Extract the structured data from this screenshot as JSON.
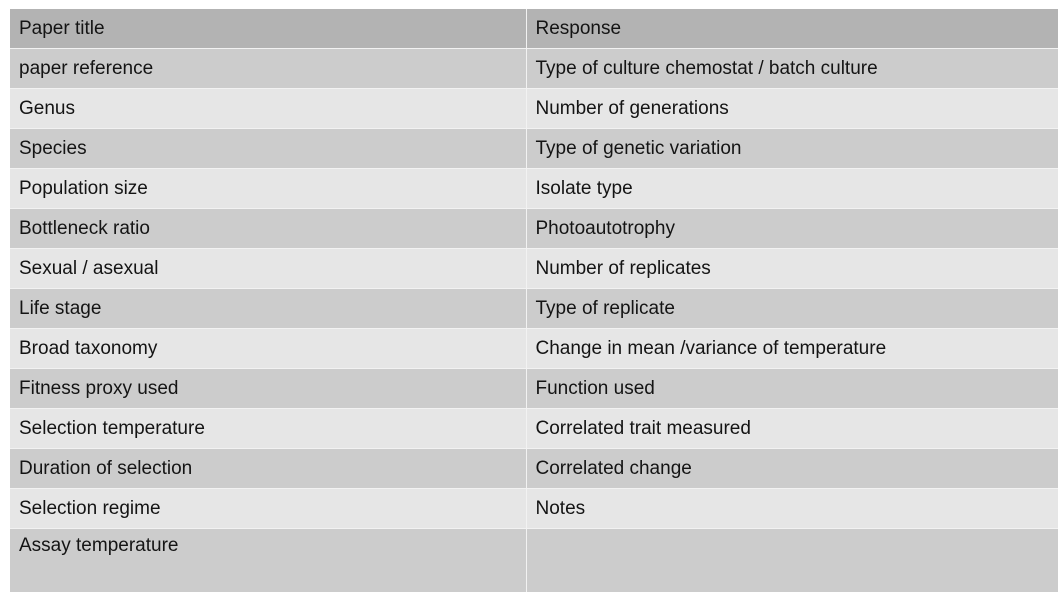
{
  "header": {
    "col1": "Paper title",
    "col2": "Response"
  },
  "rows": [
    {
      "left": "paper reference",
      "right": "Type of culture chemostat / batch culture"
    },
    {
      "left": "Genus",
      "right": "Number of generations"
    },
    {
      "left": "Species",
      "right": "Type of genetic variation"
    },
    {
      "left": "Population size",
      "right": "Isolate type"
    },
    {
      "left": "Bottleneck ratio",
      "right": "Photoautotrophy"
    },
    {
      "left": "Sexual / asexual",
      "right": "Number of replicates"
    },
    {
      "left": "Life stage",
      "right": "Type of replicate"
    },
    {
      "left": "Broad taxonomy",
      "right": "Change in mean /variance of temperature"
    },
    {
      "left": "Fitness proxy used",
      "right": "Function used"
    },
    {
      "left": "Selection temperature",
      "right": "Correlated trait measured"
    },
    {
      "left": "Duration of selection",
      "right": "Correlated change"
    },
    {
      "left": "Selection regime",
      "right": "Notes"
    },
    {
      "left": "Assay temperature",
      "right": ""
    }
  ]
}
